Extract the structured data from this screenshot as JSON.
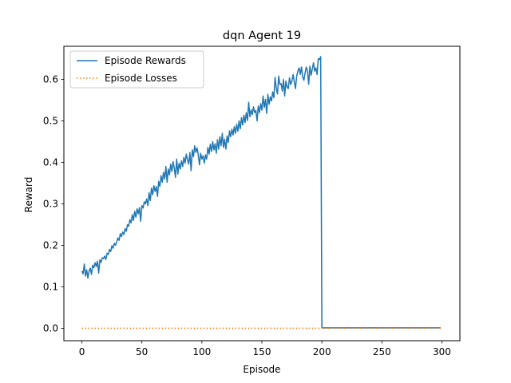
{
  "chart_data": {
    "type": "line",
    "title": "dqn Agent 19",
    "xlabel": "Episode",
    "ylabel": "Reward",
    "xlim": [
      -15,
      315
    ],
    "ylim": [
      -0.03,
      0.68
    ],
    "xticks": [
      0,
      50,
      100,
      150,
      200,
      250,
      300
    ],
    "yticks": [
      0.0,
      0.1,
      0.2,
      0.3,
      0.4,
      0.5,
      0.6
    ],
    "grid": false,
    "legend": {
      "placement": "top-left"
    },
    "series": [
      {
        "name": "Episode Rewards",
        "color": "#1f77b4",
        "style": "solid",
        "x": [
          0,
          1,
          2,
          3,
          4,
          5,
          6,
          7,
          8,
          9,
          10,
          11,
          12,
          13,
          14,
          15,
          16,
          17,
          18,
          19,
          20,
          21,
          22,
          23,
          24,
          25,
          26,
          27,
          28,
          29,
          30,
          31,
          32,
          33,
          34,
          35,
          36,
          37,
          38,
          39,
          40,
          41,
          42,
          43,
          44,
          45,
          46,
          47,
          48,
          49,
          50,
          51,
          52,
          53,
          54,
          55,
          56,
          57,
          58,
          59,
          60,
          61,
          62,
          63,
          64,
          65,
          66,
          67,
          68,
          69,
          70,
          71,
          72,
          73,
          74,
          75,
          76,
          77,
          78,
          79,
          80,
          81,
          82,
          83,
          84,
          85,
          86,
          87,
          88,
          89,
          90,
          91,
          92,
          93,
          94,
          95,
          96,
          97,
          98,
          99,
          100,
          101,
          102,
          103,
          104,
          105,
          106,
          107,
          108,
          109,
          110,
          111,
          112,
          113,
          114,
          115,
          116,
          117,
          118,
          119,
          120,
          121,
          122,
          123,
          124,
          125,
          126,
          127,
          128,
          129,
          130,
          131,
          132,
          133,
          134,
          135,
          136,
          137,
          138,
          139,
          140,
          141,
          142,
          143,
          144,
          145,
          146,
          147,
          148,
          149,
          150,
          151,
          152,
          153,
          154,
          155,
          156,
          157,
          158,
          159,
          160,
          161,
          162,
          163,
          164,
          165,
          166,
          167,
          168,
          169,
          170,
          171,
          172,
          173,
          174,
          175,
          176,
          177,
          178,
          179,
          180,
          181,
          182,
          183,
          184,
          185,
          186,
          187,
          188,
          189,
          190,
          191,
          192,
          193,
          194,
          195,
          196,
          197,
          198,
          199,
          200,
          201,
          299
        ],
        "y": [
          0.138,
          0.131,
          0.155,
          0.126,
          0.141,
          0.121,
          0.138,
          0.145,
          0.13,
          0.152,
          0.146,
          0.158,
          0.149,
          0.162,
          0.133,
          0.165,
          0.159,
          0.17,
          0.168,
          0.174,
          0.166,
          0.181,
          0.178,
          0.19,
          0.185,
          0.199,
          0.193,
          0.205,
          0.2,
          0.208,
          0.218,
          0.212,
          0.228,
          0.221,
          0.232,
          0.226,
          0.24,
          0.234,
          0.25,
          0.246,
          0.262,
          0.254,
          0.274,
          0.26,
          0.282,
          0.268,
          0.288,
          0.276,
          0.291,
          0.258,
          0.296,
          0.29,
          0.305,
          0.3,
          0.312,
          0.296,
          0.327,
          0.308,
          0.338,
          0.322,
          0.344,
          0.33,
          0.342,
          0.318,
          0.354,
          0.342,
          0.368,
          0.352,
          0.376,
          0.36,
          0.39,
          0.352,
          0.384,
          0.37,
          0.396,
          0.378,
          0.402,
          0.386,
          0.364,
          0.408,
          0.372,
          0.398,
          0.384,
          0.404,
          0.39,
          0.412,
          0.398,
          0.42,
          0.406,
          0.396,
          0.424,
          0.38,
          0.43,
          0.414,
          0.44,
          0.424,
          0.435,
          0.418,
          0.394,
          0.422,
          0.408,
          0.416,
          0.398,
          0.418,
          0.408,
          0.436,
          0.42,
          0.444,
          0.426,
          0.45,
          0.43,
          0.445,
          0.422,
          0.455,
          0.432,
          0.462,
          0.44,
          0.47,
          0.436,
          0.456,
          0.432,
          0.464,
          0.448,
          0.476,
          0.462,
          0.48,
          0.466,
          0.486,
          0.47,
          0.492,
          0.475,
          0.5,
          0.481,
          0.508,
          0.49,
          0.514,
          0.496,
          0.52,
          0.501,
          0.545,
          0.51,
          0.527,
          0.515,
          0.534,
          0.52,
          0.525,
          0.5,
          0.536,
          0.52,
          0.542,
          0.526,
          0.56,
          0.532,
          0.552,
          0.518,
          0.564,
          0.54,
          0.558,
          0.548,
          0.57,
          0.556,
          0.605,
          0.578,
          0.565,
          0.608,
          0.588,
          0.59,
          0.572,
          0.6,
          0.56,
          0.596,
          0.582,
          0.578,
          0.604,
          0.588,
          0.596,
          0.612,
          0.594,
          0.578,
          0.608,
          0.62,
          0.628,
          0.612,
          0.63,
          0.606,
          0.598,
          0.616,
          0.63,
          0.62,
          0.588,
          0.632,
          0.61,
          0.625,
          0.64,
          0.62,
          0.628,
          0.612,
          0.65,
          0.648,
          0.655,
          0.001,
          0.001,
          0.001
        ]
      },
      {
        "name": "Episode Losses",
        "color": "#ff7f0e",
        "style": "dotted",
        "x": [
          0,
          299
        ],
        "y": [
          0.0,
          0.0
        ]
      }
    ]
  }
}
